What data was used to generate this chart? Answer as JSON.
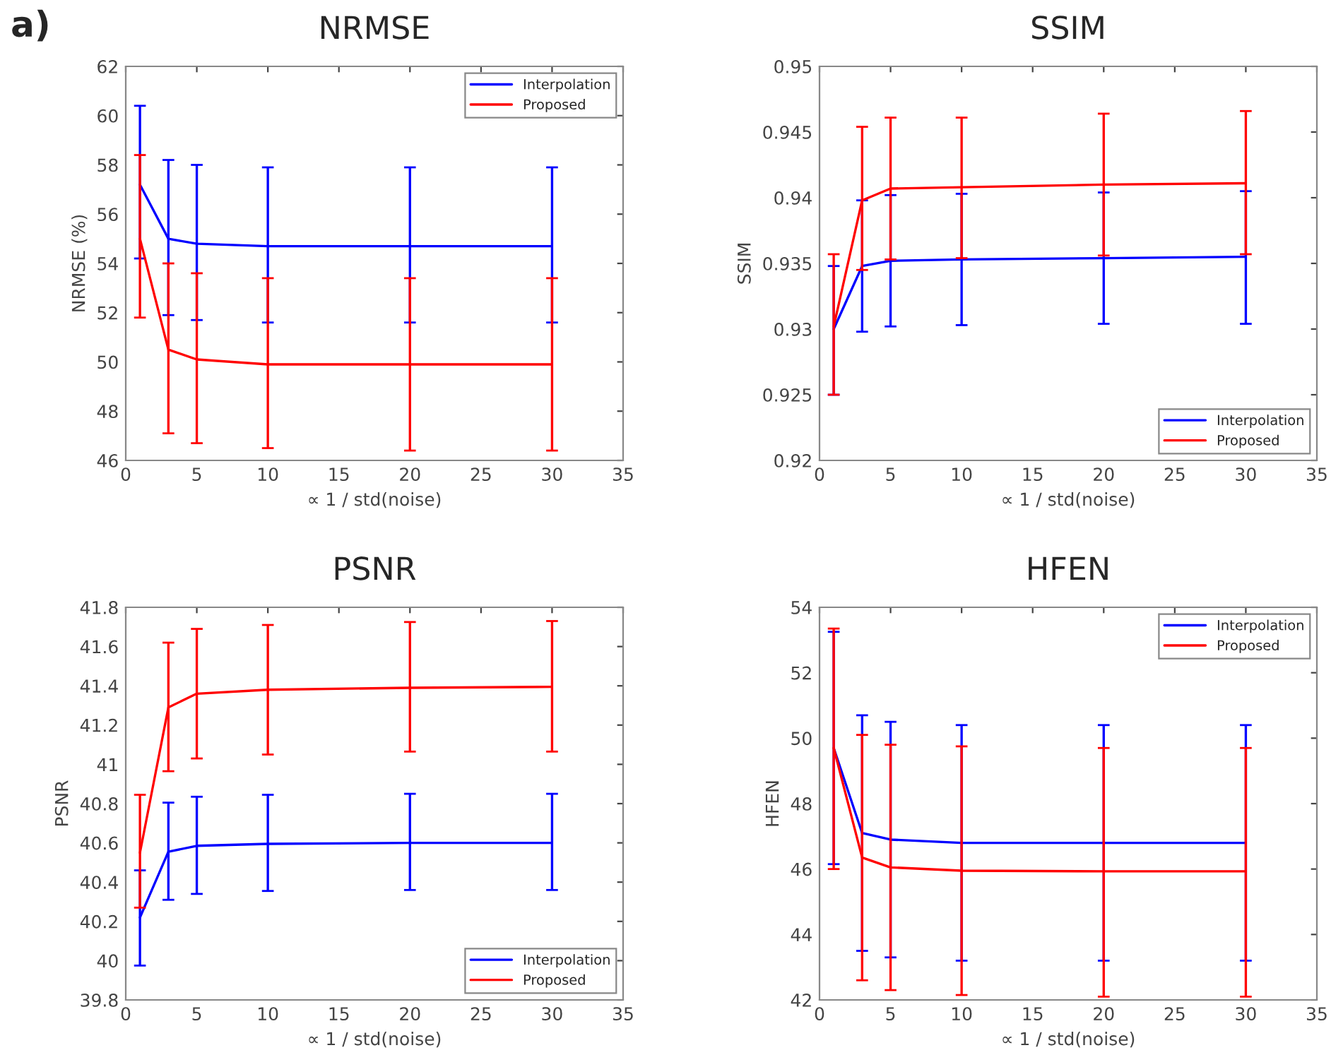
{
  "chart_data": [
    {
      "type": "line",
      "title": "NRMSE",
      "xlabel": "∝ 1 / std(noise)",
      "ylabel": "NRMSE (%)",
      "annotations": [
        "a)"
      ],
      "x": [
        1,
        3,
        5,
        10,
        20,
        30
      ],
      "xlim": [
        0,
        35
      ],
      "xticks": [
        0,
        5,
        10,
        15,
        20,
        25,
        30,
        35
      ],
      "ylim": [
        46,
        62
      ],
      "yticks": [
        46,
        48,
        50,
        52,
        54,
        56,
        58,
        60,
        62
      ],
      "grid": false,
      "legend": "top right",
      "marker": "none",
      "line_style": "solid",
      "series": [
        {
          "name": "Interpolation",
          "color": "#0000ff",
          "values": [
            57.2,
            55.0,
            54.8,
            54.7,
            54.7,
            54.7
          ],
          "errors": [
            [
              54.2,
              60.4
            ],
            [
              51.9,
              58.2
            ],
            [
              51.7,
              58.0
            ],
            [
              51.6,
              57.9
            ],
            [
              51.6,
              57.9
            ],
            [
              51.6,
              57.9
            ]
          ]
        },
        {
          "name": "Proposed",
          "color": "#ff0000",
          "values": [
            55.0,
            50.5,
            50.1,
            49.9,
            49.9,
            49.9
          ],
          "errors": [
            [
              51.8,
              58.4
            ],
            [
              47.1,
              54.0
            ],
            [
              46.7,
              53.6
            ],
            [
              46.5,
              53.4
            ],
            [
              46.4,
              53.4
            ],
            [
              46.4,
              53.4
            ]
          ]
        }
      ]
    },
    {
      "type": "line",
      "title": "SSIM",
      "xlabel": "∝ 1 / std(noise)",
      "ylabel": "SSIM",
      "x": [
        1,
        3,
        5,
        10,
        20,
        30
      ],
      "xlim": [
        0,
        35
      ],
      "xticks": [
        0,
        5,
        10,
        15,
        20,
        25,
        30,
        35
      ],
      "ylim": [
        0.92,
        0.95
      ],
      "yticks": [
        0.92,
        0.925,
        0.93,
        0.935,
        0.94,
        0.945,
        0.95
      ],
      "grid": false,
      "legend": "bottom right",
      "marker": "none",
      "line_style": "solid",
      "series": [
        {
          "name": "Interpolation",
          "color": "#0000ff",
          "values": [
            0.93,
            0.9348,
            0.9352,
            0.9353,
            0.9354,
            0.9355
          ],
          "errors": [
            [
              0.925,
              0.9348
            ],
            [
              0.9298,
              0.9398
            ],
            [
              0.9302,
              0.9402
            ],
            [
              0.9303,
              0.9403
            ],
            [
              0.9304,
              0.9404
            ],
            [
              0.9304,
              0.9405
            ]
          ]
        },
        {
          "name": "Proposed",
          "color": "#ff0000",
          "values": [
            0.9302,
            0.9398,
            0.9407,
            0.9408,
            0.941,
            0.9411
          ],
          "errors": [
            [
              0.925,
              0.9357
            ],
            [
              0.9345,
              0.9454
            ],
            [
              0.9353,
              0.9461
            ],
            [
              0.9354,
              0.9461
            ],
            [
              0.9356,
              0.9464
            ],
            [
              0.9357,
              0.9466
            ]
          ]
        }
      ]
    },
    {
      "type": "line",
      "title": "PSNR",
      "xlabel": "∝ 1 / std(noise)",
      "ylabel": "PSNR",
      "x": [
        1,
        3,
        5,
        10,
        20,
        30
      ],
      "xlim": [
        0,
        35
      ],
      "xticks": [
        0,
        5,
        10,
        15,
        20,
        25,
        30,
        35
      ],
      "ylim": [
        39.8,
        41.8
      ],
      "yticks": [
        39.8,
        40,
        40.2,
        40.4,
        40.6,
        40.8,
        41,
        41.2,
        41.4,
        41.6,
        41.8
      ],
      "grid": false,
      "legend": "bottom right",
      "marker": "none",
      "line_style": "solid",
      "series": [
        {
          "name": "Interpolation",
          "color": "#0000ff",
          "values": [
            40.22,
            40.555,
            40.585,
            40.595,
            40.6,
            40.6
          ],
          "errors": [
            [
              39.975,
              40.46
            ],
            [
              40.31,
              40.805
            ],
            [
              40.34,
              40.835
            ],
            [
              40.355,
              40.845
            ],
            [
              40.36,
              40.85
            ],
            [
              40.36,
              40.85
            ]
          ]
        },
        {
          "name": "Proposed",
          "color": "#ff0000",
          "values": [
            40.55,
            41.29,
            41.36,
            41.38,
            41.39,
            41.395
          ],
          "errors": [
            [
              40.27,
              40.845
            ],
            [
              40.965,
              41.62
            ],
            [
              41.03,
              41.69
            ],
            [
              41.05,
              41.71
            ],
            [
              41.065,
              41.725
            ],
            [
              41.065,
              41.73
            ]
          ]
        }
      ]
    },
    {
      "type": "line",
      "title": "HFEN",
      "xlabel": "∝ 1 / std(noise)",
      "ylabel": "HFEN",
      "x": [
        1,
        3,
        5,
        10,
        20,
        30
      ],
      "xlim": [
        0,
        35
      ],
      "xticks": [
        0,
        5,
        10,
        15,
        20,
        25,
        30,
        35
      ],
      "ylim": [
        42,
        54
      ],
      "yticks": [
        42,
        44,
        46,
        48,
        50,
        52,
        54
      ],
      "grid": false,
      "legend": "top right",
      "marker": "none",
      "line_style": "solid",
      "series": [
        {
          "name": "Interpolation",
          "color": "#0000ff",
          "values": [
            49.7,
            47.1,
            46.9,
            46.8,
            46.8,
            46.8
          ],
          "errors": [
            [
              46.15,
              53.25
            ],
            [
              43.5,
              50.7
            ],
            [
              43.3,
              50.5
            ],
            [
              43.2,
              50.4
            ],
            [
              43.2,
              50.4
            ],
            [
              43.2,
              50.4
            ]
          ]
        },
        {
          "name": "Proposed",
          "color": "#ff0000",
          "values": [
            49.7,
            46.35,
            46.05,
            45.95,
            45.93,
            45.93
          ],
          "errors": [
            [
              46.0,
              53.35
            ],
            [
              42.6,
              50.1
            ],
            [
              42.3,
              49.8
            ],
            [
              42.15,
              49.75
            ],
            [
              42.1,
              49.7
            ],
            [
              42.1,
              49.7
            ]
          ]
        }
      ]
    }
  ]
}
